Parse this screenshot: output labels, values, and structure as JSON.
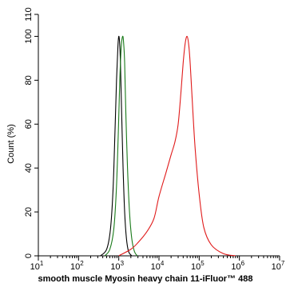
{
  "chart_data": {
    "type": "line",
    "title": "",
    "xlabel": "smooth muscle Myosin heavy chain 11-iFluor™ 488",
    "ylabel": "Count (%)",
    "xscale": "log",
    "xlim": [
      10,
      10000000
    ],
    "ylim": [
      0,
      110
    ],
    "x_ticks": [
      {
        "base": "10",
        "exp": "1"
      },
      {
        "base": "10",
        "exp": "2"
      },
      {
        "base": "10",
        "exp": "3"
      },
      {
        "base": "10",
        "exp": "4"
      },
      {
        "base": "10",
        "exp": "5"
      },
      {
        "base": "10",
        "exp": "6"
      },
      {
        "base": "10",
        "exp": "7"
      }
    ],
    "y_ticks": [
      "0",
      "20",
      "40",
      "60",
      "80",
      "100",
      "110"
    ],
    "grid": false,
    "legend": "none",
    "series": [
      {
        "color": "#000000",
        "x": [
          350,
          500,
          620,
          720,
          800,
          880,
          950,
          1000,
          1050,
          1100,
          1180,
          1280,
          1400,
          1550,
          1750,
          2100
        ],
        "y": [
          0,
          3,
          12,
          30,
          55,
          80,
          95,
          100,
          97,
          88,
          65,
          40,
          20,
          8,
          2,
          0
        ]
      },
      {
        "color": "#1a7a1a",
        "x": [
          450,
          600,
          750,
          870,
          970,
          1060,
          1150,
          1250,
          1320,
          1400,
          1500,
          1650,
          1850,
          2100,
          2450,
          2900
        ],
        "y": [
          0,
          3,
          12,
          30,
          55,
          80,
          95,
          100,
          97,
          88,
          65,
          40,
          20,
          8,
          2,
          0
        ]
      },
      {
        "color": "#e01b1b",
        "x": [
          1000,
          2000,
          3000,
          5000,
          7500,
          10000,
          15000,
          20000,
          25000,
          30000,
          35000,
          40000,
          45000,
          50000,
          55000,
          60000,
          70000,
          80000,
          100000,
          130000,
          200000,
          400000,
          800000
        ],
        "y": [
          0,
          3,
          6,
          11,
          17,
          27,
          38,
          46,
          52,
          60,
          74,
          88,
          97,
          100,
          96,
          87,
          65,
          48,
          28,
          13,
          5,
          1,
          0
        ]
      }
    ]
  }
}
